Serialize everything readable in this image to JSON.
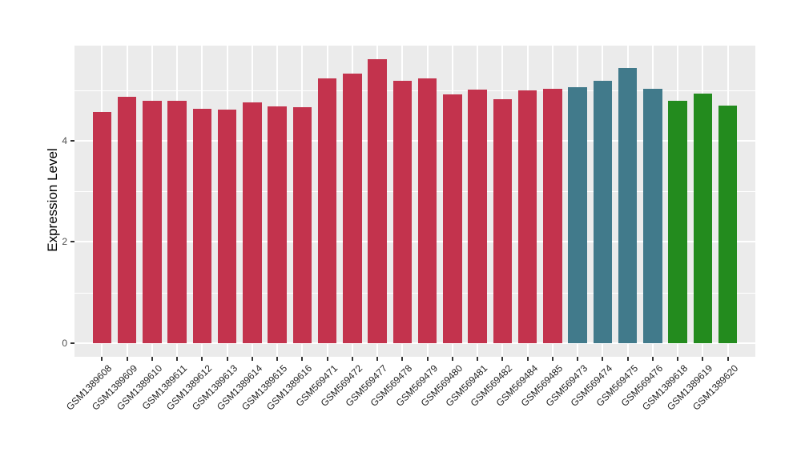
{
  "chart_data": {
    "type": "bar",
    "title": "",
    "xlabel": "",
    "ylabel": "Expression Level",
    "ylim": [
      0,
      5.9
    ],
    "yticks": [
      0,
      2,
      4
    ],
    "yticks_minor": [
      1,
      3,
      5
    ],
    "grid": true,
    "legend_position": "none",
    "panel_background": "#EBEBEB",
    "gridline_color": "#FFFFFF",
    "categories": [
      "GSM1389608",
      "GSM1389609",
      "GSM1389610",
      "GSM1389611",
      "GSM1389612",
      "GSM1389613",
      "GSM1389614",
      "GSM1389615",
      "GSM1389616",
      "GSM569471",
      "GSM569472",
      "GSM569477",
      "GSM569478",
      "GSM569479",
      "GSM569480",
      "GSM569481",
      "GSM569482",
      "GSM569484",
      "GSM569485",
      "GSM569473",
      "GSM569474",
      "GSM569475",
      "GSM569476",
      "GSM1389618",
      "GSM1389619",
      "GSM1389620"
    ],
    "values": [
      4.57,
      4.87,
      4.79,
      4.79,
      4.63,
      4.61,
      4.76,
      4.67,
      4.66,
      5.23,
      5.33,
      5.61,
      5.19,
      5.23,
      4.92,
      5.01,
      4.82,
      5.0,
      5.03,
      5.06,
      5.19,
      5.43,
      5.02,
      4.79,
      4.93,
      4.69
    ],
    "bar_palette": [
      "#C3334D",
      "#417A8B",
      "#238B1E"
    ],
    "bar_color_indices": [
      0,
      0,
      0,
      0,
      0,
      0,
      0,
      0,
      0,
      0,
      0,
      0,
      0,
      0,
      0,
      0,
      0,
      0,
      0,
      1,
      1,
      1,
      1,
      2,
      2,
      2
    ]
  }
}
